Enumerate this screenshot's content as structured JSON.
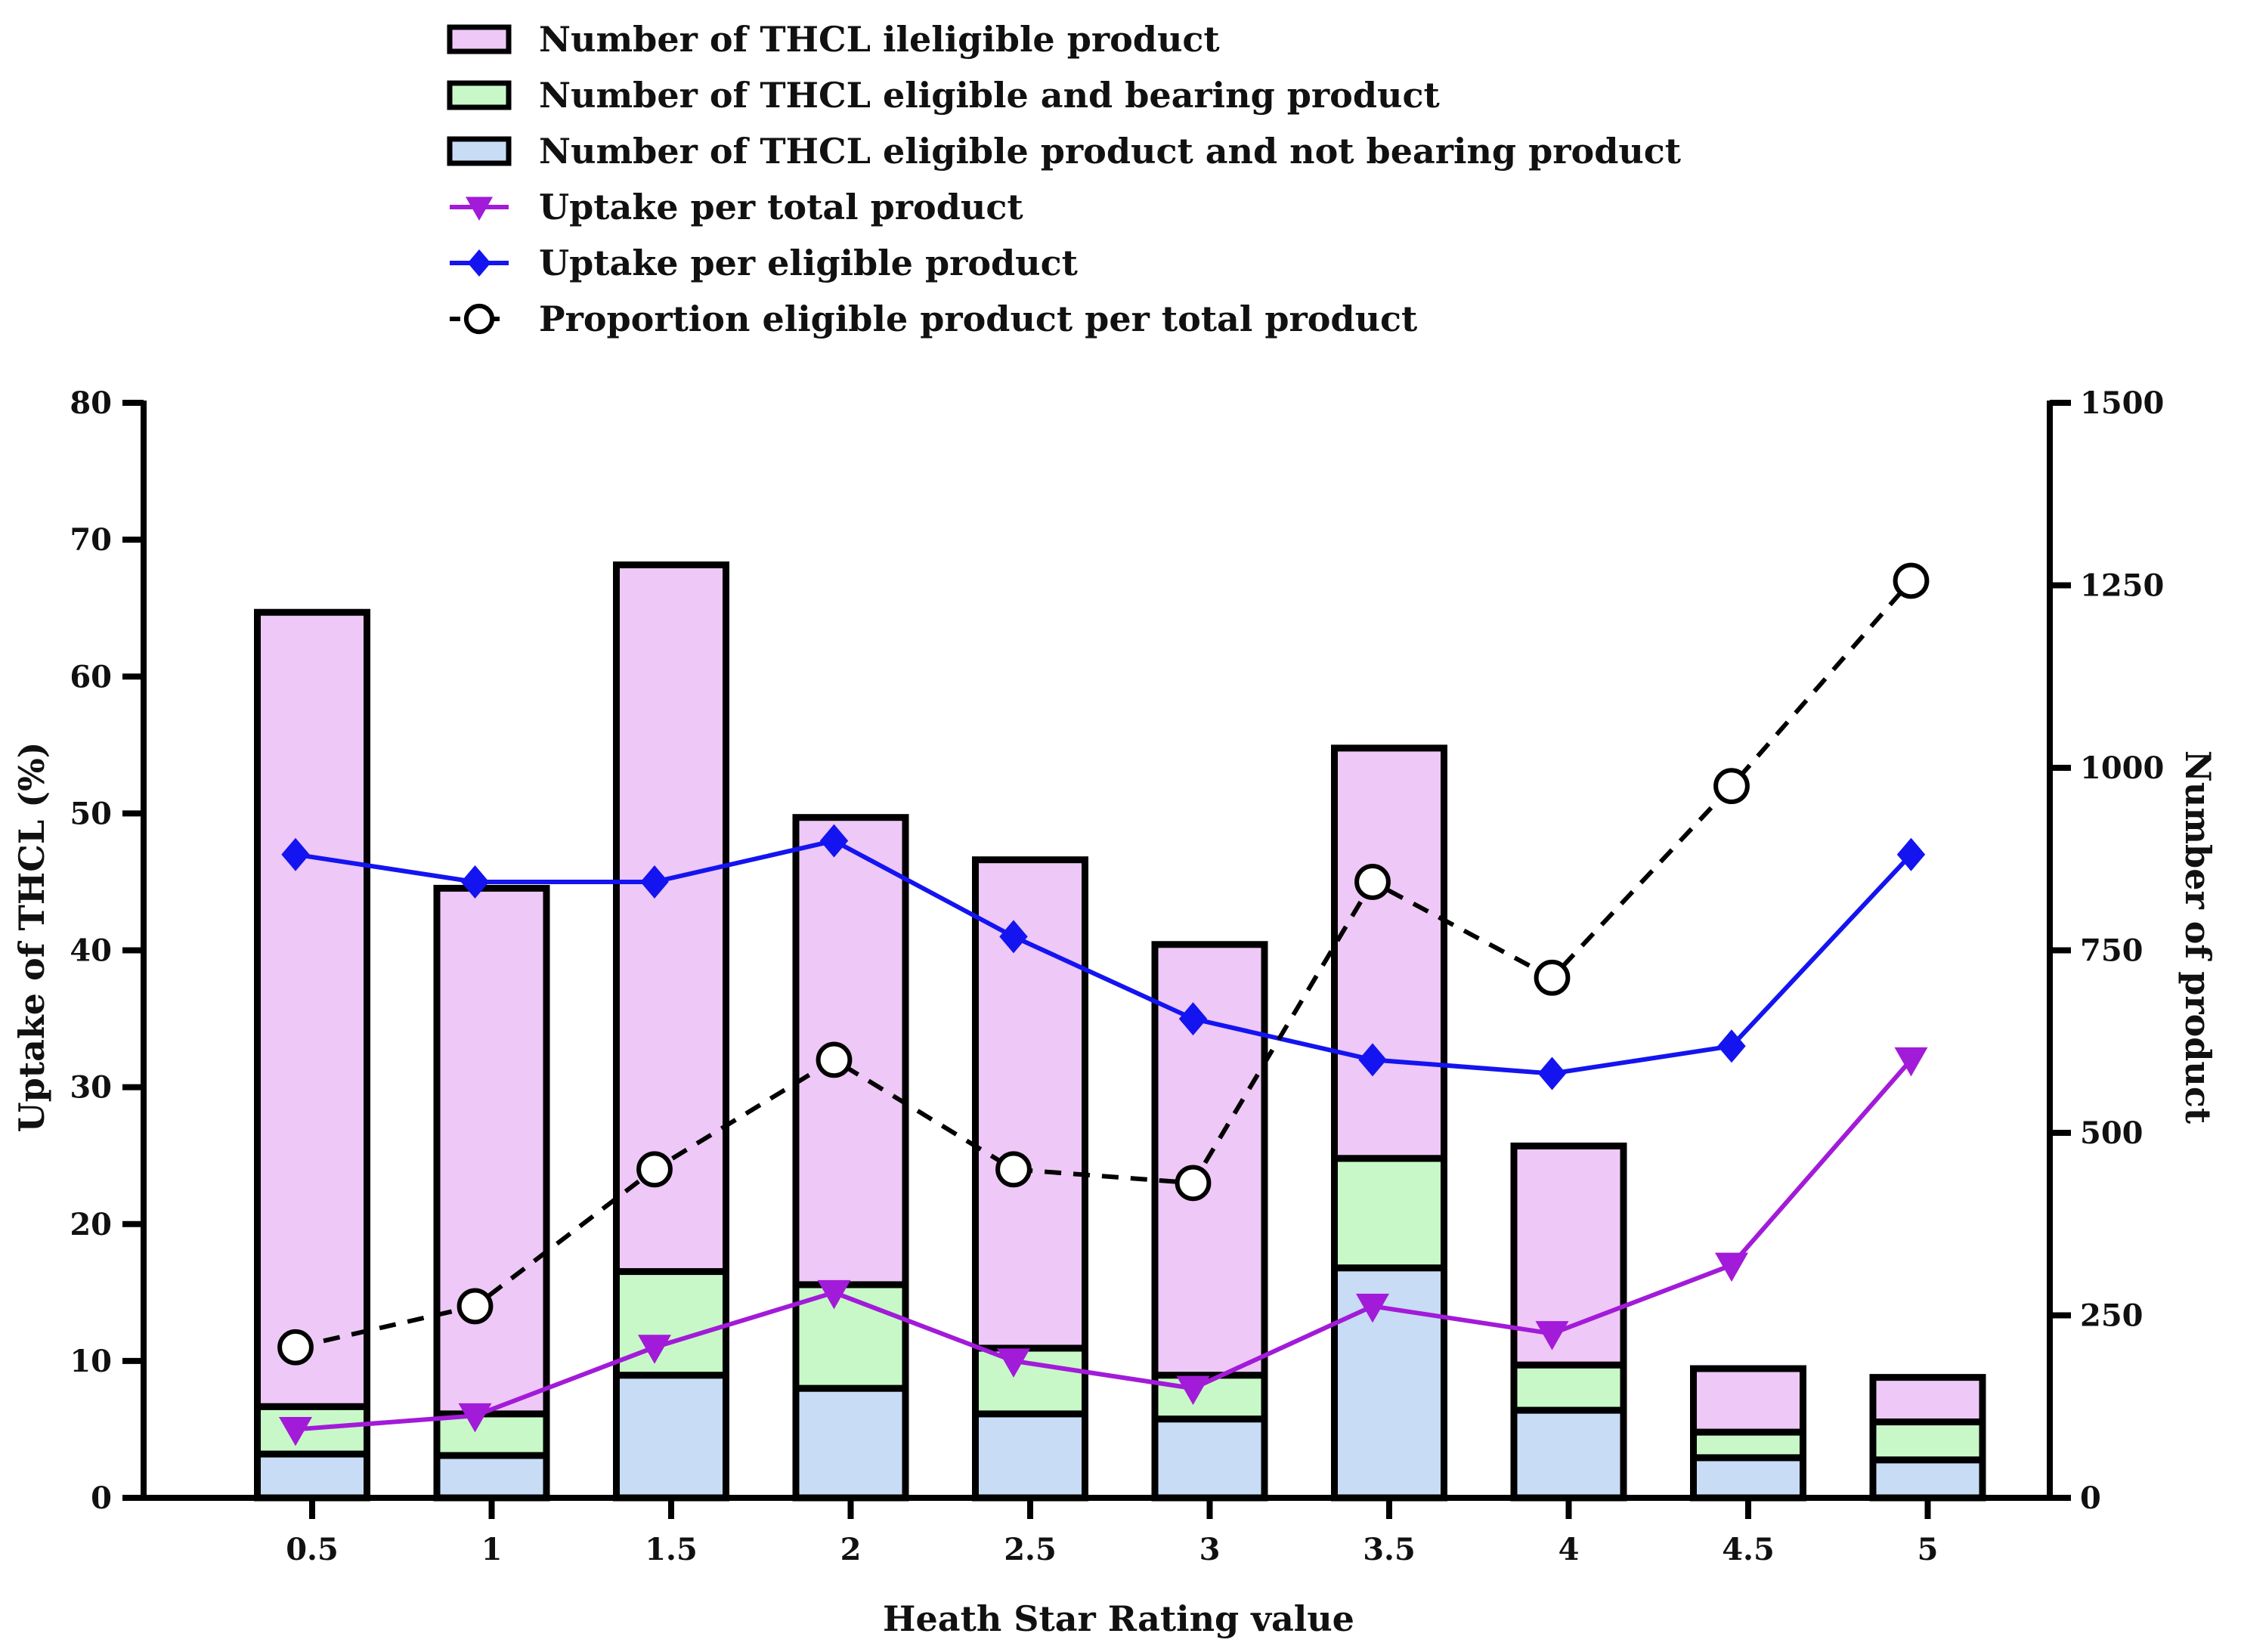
{
  "legend": [
    {
      "label": "Number of THCL ileligible product",
      "kind": "bar",
      "color": "#eec8f6"
    },
    {
      "label": "Number of THCL eligible and bearing product",
      "kind": "bar",
      "color": "#c8f8c8"
    },
    {
      "label": "Number of THCL eligible product and not bearing product",
      "kind": "bar",
      "color": "#c8dcf6"
    },
    {
      "label": "Uptake per total product",
      "kind": "line-triangle",
      "color": "#a21bd8"
    },
    {
      "label": "Uptake per eligible product",
      "kind": "line-diamond",
      "color": "#1414f0"
    },
    {
      "label": "Proportion eligible product per total product",
      "kind": "line-circle-dashed",
      "color": "#000000"
    }
  ],
  "chart_data": {
    "type": "bar",
    "stacked": true,
    "title": "",
    "xlabel": "Heath Star Rating value",
    "ylabel": "Uptake of  THCL (%)",
    "ylabel_right": "Number of product",
    "categories": [
      "0.5",
      "1",
      "1.5",
      "2",
      "2.5",
      "3",
      "3.5",
      "4",
      "4.5",
      "5"
    ],
    "ylim": [
      0,
      80
    ],
    "yticks": [
      0,
      10,
      20,
      30,
      40,
      50,
      60,
      70,
      80
    ],
    "ylim_right": [
      0,
      1500
    ],
    "yticks_right": [
      0,
      250,
      500,
      750,
      1000,
      1250,
      1500
    ],
    "bar_series": [
      {
        "name": "Number of THCL eligible product and not bearing product",
        "axis": "right",
        "color": "#c8dcf6",
        "values": [
          60,
          58,
          168,
          150,
          115,
          108,
          315,
          120,
          55,
          52
        ]
      },
      {
        "name": "Number of THCL eligible and bearing product",
        "axis": "right",
        "color": "#c8f8c8",
        "values": [
          65,
          57,
          142,
          142,
          90,
          60,
          150,
          62,
          35,
          52
        ]
      },
      {
        "name": "Number of THCL ileligible product",
        "axis": "right",
        "color": "#eec8f6",
        "values": [
          1088,
          720,
          968,
          640,
          669,
          590,
          562,
          300,
          87,
          61
        ]
      }
    ],
    "line_series": [
      {
        "name": "Uptake per total product",
        "axis": "left",
        "color": "#a21bd8",
        "marker": "triangle-down",
        "dashed": false,
        "values": [
          5,
          6,
          11,
          15,
          10,
          8,
          14,
          12,
          17,
          32
        ]
      },
      {
        "name": "Uptake per eligible product",
        "axis": "left",
        "color": "#1414f0",
        "marker": "diamond",
        "dashed": false,
        "values": [
          47,
          45,
          45,
          48,
          41,
          35,
          32,
          31,
          33,
          47
        ]
      },
      {
        "name": "Proportion eligible product per total product",
        "axis": "left",
        "color": "#000000",
        "marker": "circle-open",
        "dashed": true,
        "values": [
          11,
          14,
          24,
          32,
          24,
          23,
          45,
          38,
          52,
          67
        ]
      }
    ]
  }
}
